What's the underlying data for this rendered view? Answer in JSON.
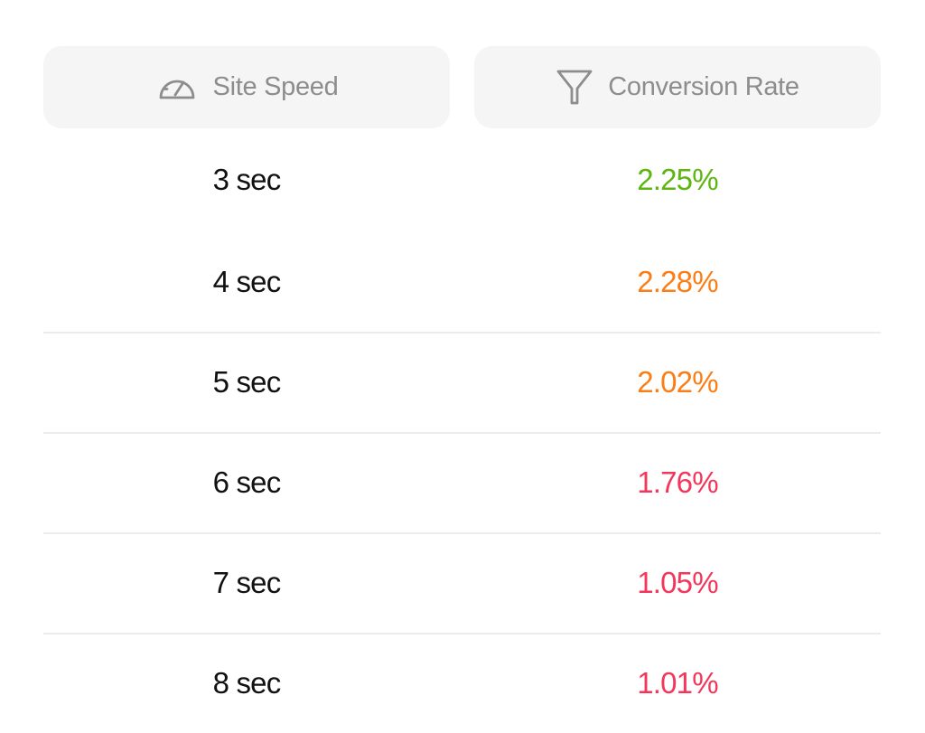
{
  "table": {
    "headers": {
      "speed": {
        "label": "Site Speed",
        "icon": "speedometer-icon"
      },
      "conversion": {
        "label": "Conversion Rate",
        "icon": "funnel-icon"
      }
    },
    "rows": [
      {
        "speed": "3 sec",
        "conversion": "2.25%",
        "color": "#5cb60f"
      },
      {
        "speed": "4 sec",
        "conversion": "2.28%",
        "color": "#fb7d15"
      },
      {
        "speed": "5 sec",
        "conversion": "2.02%",
        "color": "#fb7d15"
      },
      {
        "speed": "6 sec",
        "conversion": "1.76%",
        "color": "#f3365a"
      },
      {
        "speed": "7 sec",
        "conversion": "1.05%",
        "color": "#f3365a"
      },
      {
        "speed": "8 sec",
        "conversion": "1.01%",
        "color": "#f3365a"
      }
    ]
  },
  "colors": {
    "header_bg": "#f5f5f5",
    "header_text": "#8d8d8d",
    "divider": "#ececec",
    "good": "#5cb60f",
    "warning": "#fb7d15",
    "bad": "#f3365a"
  }
}
